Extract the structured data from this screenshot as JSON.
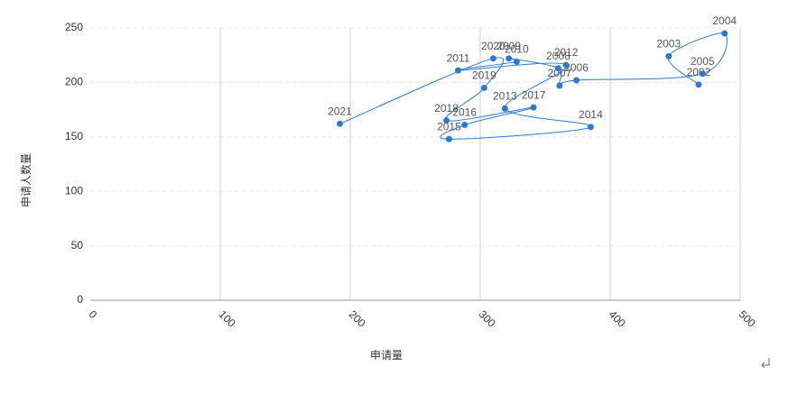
{
  "chart_data": {
    "type": "scatter-line",
    "x_label": "申请量",
    "y_label": "申请人数量",
    "xlim": [
      0,
      500
    ],
    "xticks": [
      0,
      100,
      200,
      300,
      400,
      500
    ],
    "ylim": [
      0,
      250
    ],
    "yticks": [
      0,
      50,
      100,
      150,
      200,
      250
    ],
    "grid": true,
    "smooth": true,
    "series": [
      {
        "color": "#2a7bd0",
        "labels": [
          "2002",
          "2003",
          "2004",
          "2005",
          "2006",
          "2007",
          "2008",
          "2009",
          "2010",
          "2011",
          "2012",
          "2013",
          "2014",
          "2015",
          "2016",
          "2017",
          "2018",
          "2019",
          "2020",
          "2021"
        ],
        "x": [
          468,
          445,
          488,
          471,
          374,
          361,
          360,
          322,
          328,
          283,
          366,
          319,
          385,
          276,
          288,
          341,
          274,
          303,
          310,
          192
        ],
        "values": [
          198,
          224,
          245,
          208,
          202,
          197,
          213,
          222,
          219,
          211,
          216,
          176,
          159,
          148,
          161,
          177,
          165,
          195,
          222,
          162
        ]
      }
    ]
  }
}
